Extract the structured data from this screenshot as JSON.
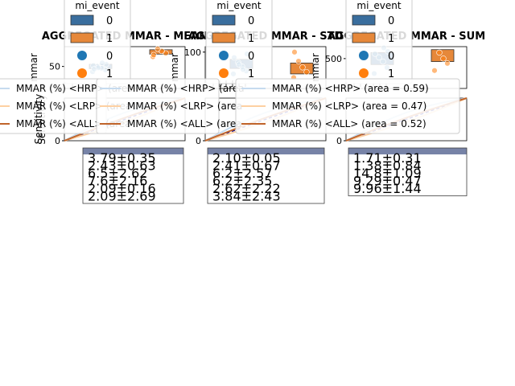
{
  "figure": {
    "panel_titles": [
      "AGGREGATED MMAR - MEAN",
      "AGGREGATED MMAR - STD",
      "AGGREGATED MMAR - SUM"
    ],
    "top_legend": {
      "title": "mi_event",
      "entries": [
        {
          "label": "0",
          "kind": "box",
          "color": "#3a6e9e"
        },
        {
          "label": "1",
          "kind": "box",
          "color": "#e6883a"
        },
        {
          "label": "0",
          "kind": "dot",
          "color": "#1f77b4"
        },
        {
          "label": "1",
          "kind": "dot",
          "color": "#ff7f0e"
        }
      ]
    },
    "upper_ylabel": "mmar",
    "lower_ylabel": "Sensitivity",
    "roc_legend_entries": [
      {
        "label": "MMAR (%) <HRP> (area = 0.59)",
        "color": "#c6dbef"
      },
      {
        "label": "MMAR (%) <LRP> (area = 0.47)",
        "color": "#fdd0a2"
      },
      {
        "label": "MMAR (%) <ALL> (area = 0.52)",
        "color": "#c0642a"
      }
    ],
    "roc_legend_partial": [
      [
        "MMAR (%) <HRP> (area",
        "MMAR (%) <LRP> (area",
        "MMAR (%) <ALL> (area"
      ],
      [
        "MMAR (%) <HRP> (area",
        "MMAR (%) <LRP> (area",
        "MMAR (%) <ALL> (area"
      ]
    ],
    "colors": {
      "blue_box": "#3a6e9e",
      "orange_box": "#e6883a",
      "blue_dot": "#1f77b4",
      "orange_dot": "#ff7f0e",
      "light_blue": "#c6dbef",
      "light_orange": "#fdd0a2",
      "dark_orange": "#c0642a",
      "navy": "#00008b",
      "table_edge": "#404040",
      "header_fill": "#4a5a8a"
    }
  },
  "chart_data": [
    {
      "type": "box",
      "title": "AGGREGATED MMAR - MEAN",
      "ylabel": "mmar",
      "yticks": [
        "50"
      ],
      "ylim": [
        0,
        95
      ],
      "series": [
        {
          "name": "0",
          "box": [
            45,
            55
          ],
          "points": [
            38,
            42,
            46,
            50,
            52,
            55,
            58,
            47,
            44
          ]
        },
        {
          "name": "1",
          "box": [
            78,
            88
          ],
          "points": [
            72,
            80,
            85,
            90,
            76
          ]
        }
      ],
      "roc": {
        "ylabel": "Sensitivity",
        "yticks": [
          "0"
        ],
        "legend_entries": [
          0,
          1,
          2
        ]
      },
      "table": {
        "rows": [
          "3.79±0.35",
          "2.43±0.63",
          "6.5±2.62",
          "7.6±2.16",
          "2.09±0.16",
          "2.09±2.69"
        ]
      }
    },
    {
      "type": "box",
      "title": "AGGREGATED MMAR - STD",
      "ylabel": "mmar",
      "yticks": [
        "100"
      ],
      "ylim": [
        0,
        115
      ],
      "series": [
        {
          "name": "0",
          "box": [
            55,
            80
          ],
          "points": [
            40,
            48,
            60,
            72,
            85,
            95,
            52,
            66
          ]
        },
        {
          "name": "1",
          "box": [
            40,
            70
          ],
          "points": [
            30,
            45,
            58,
            75,
            100
          ]
        }
      ],
      "roc": {
        "ylabel": "",
        "yticks": [
          "0"
        ],
        "legend_entries": [
          0,
          1,
          2
        ]
      },
      "table": {
        "rows": [
          "2.10±0.05",
          "2.41±0.67",
          "6.2±2.57",
          "6.2±2.35",
          "2.62±2.22",
          "3.84±2.43"
        ]
      }
    },
    {
      "type": "box",
      "title": "AGGREGATED MMAR - SUM",
      "ylabel": "mmar",
      "yticks": [
        "500"
      ],
      "ylim": [
        0,
        700
      ],
      "series": [
        {
          "name": "0",
          "box": [
            400,
            600
          ],
          "points": [
            250,
            350,
            450,
            520,
            580,
            620,
            680
          ]
        },
        {
          "name": "1",
          "box": [
            450,
            650
          ],
          "points": [
            300,
            420,
            500,
            600
          ]
        }
      ],
      "roc": {
        "ylabel": "",
        "yticks": [
          "0"
        ],
        "legend_entries": [
          0,
          1,
          2
        ]
      },
      "table": {
        "rows": [
          "1.71±0.31",
          "1.38±0.84",
          "14.8±1.09",
          "9.29±0.47",
          "9.96±1.44"
        ]
      }
    }
  ]
}
